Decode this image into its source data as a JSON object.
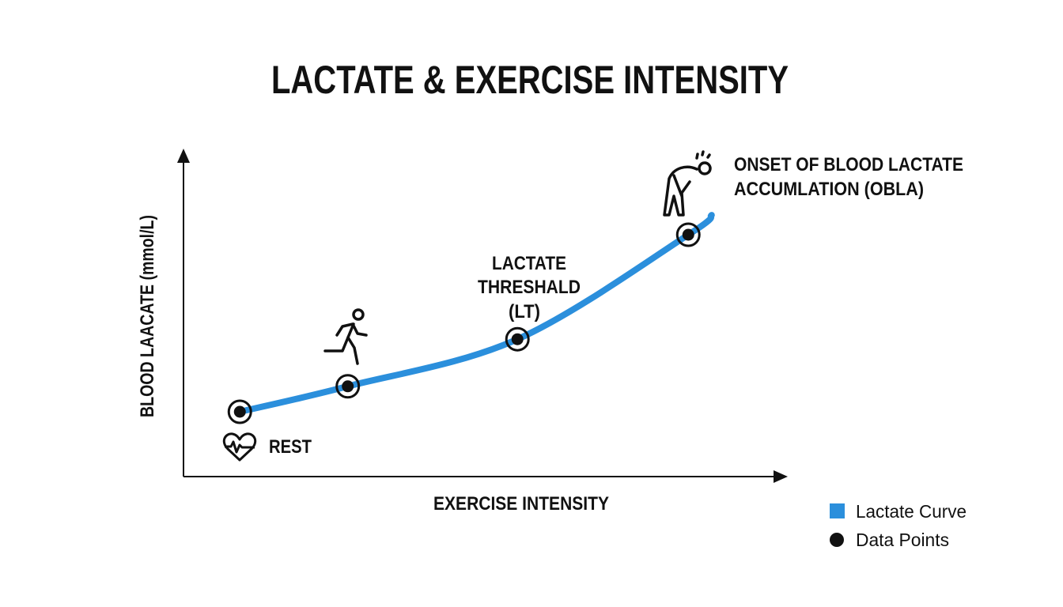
{
  "chart_data": {
    "type": "line",
    "title": "LACTATE & EXERCISE INTENSITY",
    "xlabel": "EXERCISE INTENSITY",
    "ylabel": "BLOOD LAACATE (mmol/L)",
    "xlim": [
      0,
      100
    ],
    "ylim": [
      0,
      100
    ],
    "grid": false,
    "legend_position": "bottom-right",
    "colors": {
      "curve": "#2b8fdc",
      "points": "#111111"
    },
    "series": [
      {
        "name": "Lactate Curve",
        "x": [
          9.4,
          27.4,
          55.7,
          84.2,
          88.1
        ],
        "y": [
          20.1,
          28.0,
          42.6,
          75.0,
          81.1
        ]
      },
      {
        "name": "Data Points",
        "x": [
          9.4,
          27.4,
          55.7,
          84.2
        ],
        "y": [
          20.1,
          28.0,
          42.6,
          75.0
        ]
      }
    ],
    "annotations": {
      "rest": "REST",
      "lt": [
        "LACTATE",
        "THRESHALD",
        "(LT)"
      ],
      "obla": [
        "ONSET OF BLOOD LACTATE",
        "ACCUMLATION (OBLA)"
      ]
    },
    "legend": [
      "Lactate Curve",
      "Data Points"
    ],
    "icons": [
      "heart-rate-icon",
      "runner-icon",
      "exhausted-person-icon"
    ]
  }
}
